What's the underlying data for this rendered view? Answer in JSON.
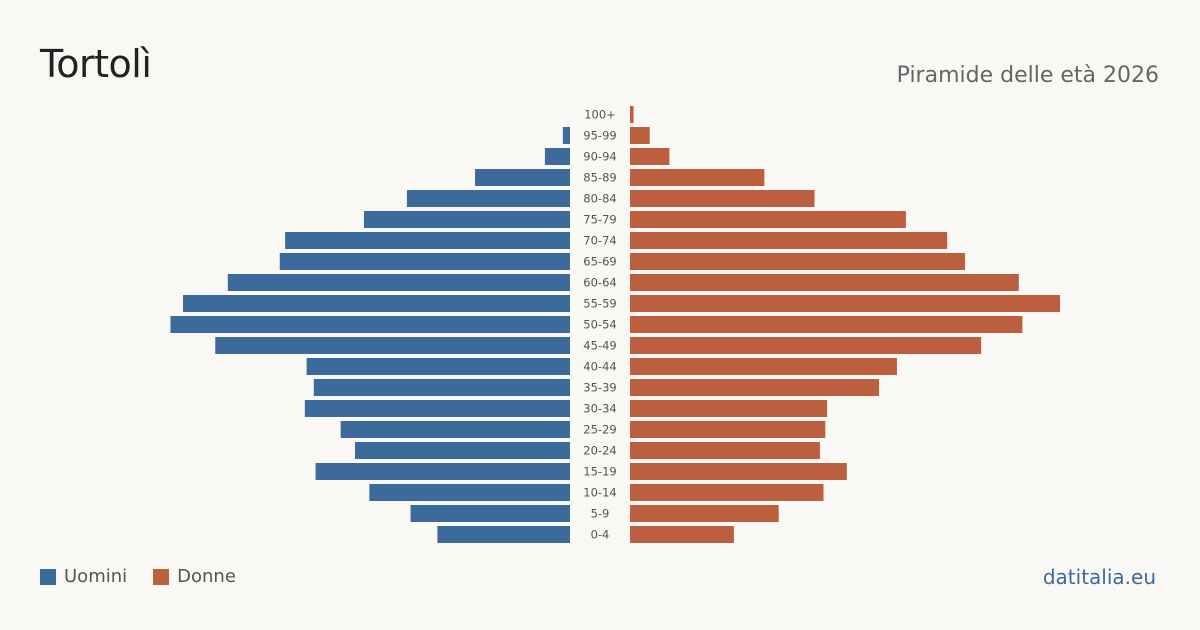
{
  "header": {
    "title": "Tortolì",
    "subtitle": "Piramide delle età 2026"
  },
  "legend": {
    "male_label": "Uomini",
    "female_label": "Donne"
  },
  "source": "datitalia.eu",
  "colors": {
    "male": "#3c6a9b",
    "female": "#bb5f3e",
    "background": "#faf8f4"
  },
  "chart_data": {
    "type": "bar",
    "orientation": "horizontal-pyramid",
    "categories": [
      "100+",
      "95-99",
      "90-94",
      "85-89",
      "80-84",
      "75-79",
      "70-74",
      "65-69",
      "60-64",
      "55-59",
      "50-54",
      "45-49",
      "40-44",
      "35-39",
      "30-34",
      "25-29",
      "20-24",
      "15-19",
      "10-14",
      "5-9",
      "0-4"
    ],
    "series": [
      {
        "name": "Uomini",
        "values": [
          0,
          4,
          14,
          53,
          91,
          115,
          159,
          162,
          191,
          216,
          223,
          198,
          147,
          143,
          148,
          128,
          120,
          142,
          112,
          89,
          74
        ]
      },
      {
        "name": "Donne",
        "values": [
          2,
          11,
          22,
          75,
          103,
          154,
          177,
          187,
          217,
          240,
          219,
          196,
          149,
          139,
          110,
          109,
          106,
          121,
          108,
          83,
          58
        ]
      }
    ],
    "xlim": [
      0,
      240
    ]
  }
}
